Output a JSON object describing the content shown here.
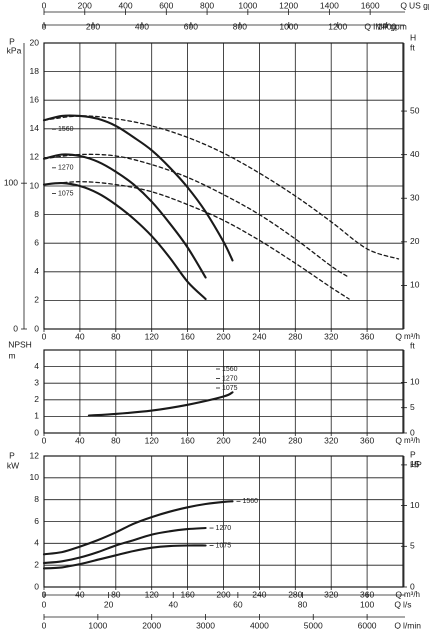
{
  "chart_data": [
    {
      "id": "head",
      "type": "line",
      "xlabel": "Q m³/h",
      "xlim": [
        0,
        400
      ],
      "xticks": [
        0,
        40,
        80,
        120,
        160,
        200,
        240,
        280,
        320,
        360,
        400
      ],
      "left_axis": {
        "label": "P",
        "unit": "kPa",
        "ticks": [
          0,
          100
        ]
      },
      "primary_axis": {
        "unit": "m",
        "ylim": [
          0,
          20
        ],
        "ticks": [
          0,
          2,
          4,
          6,
          8,
          10,
          12,
          14,
          16,
          18,
          20
        ]
      },
      "right_axis": {
        "label": "H",
        "unit": "ft",
        "ticks": [
          10,
          20,
          30,
          40,
          50
        ]
      },
      "top_axes": [
        {
          "label": "Q US gpm",
          "ticks": [
            0,
            200,
            400,
            600,
            800,
            1000,
            1200,
            1400,
            1600
          ]
        },
        {
          "label": "Q IMP gpm",
          "ticks": [
            0,
            200,
            400,
            600,
            800,
            1000,
            1200,
            1400
          ]
        }
      ],
      "series": [
        {
          "name": "1560",
          "style": "solid",
          "x": [
            0,
            20,
            40,
            60,
            80,
            100,
            120,
            140,
            160,
            180,
            200,
            210
          ],
          "y": [
            14.6,
            14.9,
            14.9,
            14.7,
            14.2,
            13.4,
            12.5,
            11.3,
            9.9,
            8.2,
            6.1,
            4.8
          ]
        },
        {
          "name": "1270",
          "style": "solid",
          "x": [
            0,
            20,
            40,
            60,
            80,
            100,
            120,
            140,
            160,
            180
          ],
          "y": [
            11.9,
            12.2,
            12.1,
            11.7,
            11.0,
            10.1,
            8.9,
            7.4,
            5.7,
            3.6
          ]
        },
        {
          "name": "1075",
          "style": "solid",
          "x": [
            0,
            20,
            40,
            60,
            80,
            100,
            120,
            140,
            160,
            180
          ],
          "y": [
            10.1,
            10.2,
            10.0,
            9.5,
            8.7,
            7.7,
            6.5,
            5.0,
            3.3,
            2.1
          ]
        },
        {
          "name": "1560",
          "style": "dashed",
          "x": [
            0,
            40,
            80,
            120,
            160,
            200,
            240,
            280,
            320,
            360,
            395
          ],
          "y": [
            14.6,
            14.9,
            14.7,
            14.2,
            13.4,
            12.3,
            10.9,
            9.3,
            7.5,
            5.6,
            4.9
          ]
        },
        {
          "name": "1270",
          "style": "dashed",
          "x": [
            0,
            40,
            80,
            120,
            160,
            200,
            240,
            280,
            320,
            340
          ],
          "y": [
            11.9,
            12.2,
            12.1,
            11.5,
            10.6,
            9.4,
            8.0,
            6.3,
            4.4,
            3.6
          ]
        },
        {
          "name": "1075",
          "style": "dashed",
          "x": [
            0,
            40,
            80,
            120,
            160,
            200,
            240,
            280,
            320,
            340
          ],
          "y": [
            10.1,
            10.3,
            10.1,
            9.6,
            8.7,
            7.6,
            6.2,
            4.6,
            2.9,
            2.1
          ]
        }
      ]
    },
    {
      "id": "npsh",
      "type": "line",
      "xlabel": "Q m³/h",
      "xlim": [
        0,
        400
      ],
      "xticks": [
        0,
        40,
        80,
        120,
        160,
        200,
        240,
        280,
        320,
        360,
        400
      ],
      "left_axis": {
        "label": "NPSH",
        "unit": "m",
        "ylim": [
          0,
          5
        ],
        "ticks": [
          0,
          1,
          2,
          3,
          4
        ]
      },
      "right_axis": {
        "unit": "ft",
        "ticks": [
          0,
          5,
          10
        ]
      },
      "series": [
        {
          "name": "1560 / 1270 / 1075",
          "style": "solid",
          "x": [
            50,
            80,
            120,
            160,
            200,
            210
          ],
          "y": [
            1.05,
            1.15,
            1.35,
            1.7,
            2.2,
            2.45
          ]
        }
      ],
      "legend_labels": [
        "1560",
        "1270",
        "1075"
      ]
    },
    {
      "id": "power",
      "type": "line",
      "xlabel": "Q m³/h",
      "xlim": [
        0,
        400
      ],
      "xticks": [
        0,
        40,
        80,
        120,
        160,
        200,
        240,
        280,
        320,
        360,
        400
      ],
      "left_axis": {
        "label": "P",
        "unit": "kW",
        "ylim": [
          0,
          12
        ],
        "ticks": [
          0,
          2,
          4,
          6,
          8,
          10,
          12
        ]
      },
      "right_axis": {
        "label": "P",
        "unit": "HP",
        "ticks": [
          0,
          5,
          10,
          15
        ]
      },
      "bottom_axes": [
        {
          "label": "Q l/s",
          "ticks": [
            0,
            20,
            40,
            60,
            80,
            100
          ]
        },
        {
          "label": "Q l/min",
          "ticks": [
            0,
            1000,
            2000,
            3000,
            4000,
            5000,
            6000
          ]
        }
      ],
      "series": [
        {
          "name": "1560",
          "style": "solid",
          "x": [
            0,
            20,
            40,
            60,
            80,
            100,
            120,
            140,
            160,
            180,
            200,
            210
          ],
          "y": [
            3.0,
            3.2,
            3.7,
            4.3,
            5.0,
            5.8,
            6.4,
            6.9,
            7.3,
            7.6,
            7.8,
            7.85
          ]
        },
        {
          "name": "1270",
          "style": "solid",
          "x": [
            0,
            20,
            40,
            60,
            80,
            100,
            120,
            140,
            160,
            180
          ],
          "y": [
            2.2,
            2.35,
            2.7,
            3.2,
            3.8,
            4.3,
            4.8,
            5.1,
            5.3,
            5.4
          ]
        },
        {
          "name": "1075",
          "style": "solid",
          "x": [
            0,
            20,
            40,
            60,
            80,
            100,
            120,
            140,
            160,
            180
          ],
          "y": [
            1.7,
            1.8,
            2.1,
            2.5,
            2.9,
            3.3,
            3.6,
            3.75,
            3.8,
            3.8
          ]
        }
      ]
    }
  ]
}
